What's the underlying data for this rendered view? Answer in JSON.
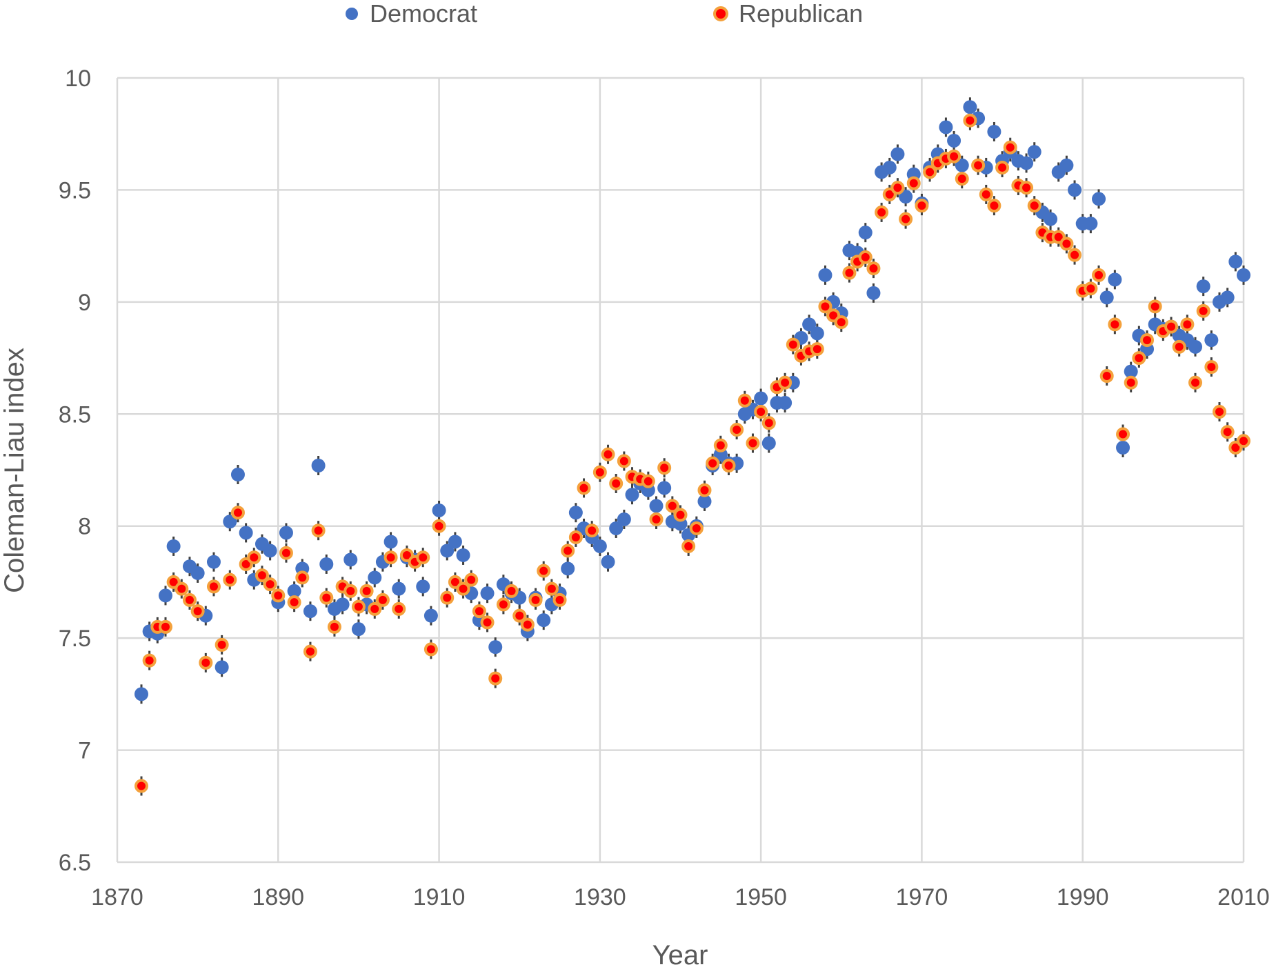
{
  "chart_data": {
    "type": "scatter",
    "xlabel": "Year",
    "ylabel": "Coleman-Liau index",
    "xlim": [
      1870,
      2010
    ],
    "ylim": [
      6.5,
      10
    ],
    "xticks": [
      1870,
      1890,
      1910,
      1930,
      1950,
      1970,
      1990,
      2010
    ],
    "yticks": [
      "6.5",
      "7",
      "7.5",
      "8",
      "8.5",
      "9",
      "9.5",
      "10"
    ],
    "grid": true,
    "legend_position": "top",
    "series": [
      {
        "name": "Democrat",
        "color": "#4472c4",
        "marker": "circle",
        "x": [
          1873,
          1874,
          1875,
          1876,
          1877,
          1879,
          1880,
          1881,
          1882,
          1883,
          1884,
          1885,
          1886,
          1887,
          1888,
          1889,
          1890,
          1891,
          1892,
          1893,
          1894,
          1895,
          1896,
          1897,
          1898,
          1899,
          1900,
          1901,
          1902,
          1903,
          1904,
          1905,
          1906,
          1907,
          1908,
          1909,
          1910,
          1911,
          1912,
          1913,
          1914,
          1915,
          1916,
          1917,
          1918,
          1919,
          1920,
          1921,
          1922,
          1923,
          1924,
          1925,
          1926,
          1927,
          1928,
          1929,
          1930,
          1931,
          1932,
          1933,
          1934,
          1935,
          1936,
          1937,
          1938,
          1939,
          1940,
          1941,
          1942,
          1943,
          1944,
          1945,
          1946,
          1947,
          1948,
          1949,
          1950,
          1951,
          1952,
          1953,
          1954,
          1955,
          1956,
          1957,
          1958,
          1959,
          1960,
          1961,
          1962,
          1963,
          1964,
          1965,
          1966,
          1967,
          1968,
          1969,
          1970,
          1971,
          1972,
          1973,
          1974,
          1975,
          1976,
          1977,
          1978,
          1979,
          1980,
          1981,
          1982,
          1983,
          1984,
          1985,
          1986,
          1987,
          1988,
          1989,
          1990,
          1991,
          1992,
          1993,
          1994,
          1995,
          1996,
          1997,
          1998,
          1999,
          2000,
          2001,
          2002,
          2003,
          2004,
          2005,
          2006,
          2007,
          2008,
          2009,
          2010
        ],
        "y": [
          7.25,
          7.53,
          7.52,
          7.69,
          7.91,
          7.82,
          7.79,
          7.6,
          7.84,
          7.37,
          8.02,
          8.23,
          7.97,
          7.76,
          7.92,
          7.89,
          7.66,
          7.97,
          7.71,
          7.81,
          7.62,
          8.27,
          7.83,
          7.63,
          7.65,
          7.85,
          7.54,
          7.65,
          7.77,
          7.84,
          7.93,
          7.72,
          7.86,
          7.85,
          7.73,
          7.6,
          8.07,
          7.89,
          7.93,
          7.87,
          7.7,
          7.58,
          7.7,
          7.46,
          7.74,
          7.7,
          7.68,
          7.53,
          7.68,
          7.58,
          7.65,
          7.7,
          7.81,
          8.06,
          7.99,
          7.95,
          7.91,
          7.84,
          7.99,
          8.03,
          8.14,
          8.19,
          8.16,
          8.09,
          8.17,
          8.02,
          8.01,
          7.96,
          8.0,
          8.11,
          8.27,
          8.32,
          8.28,
          8.28,
          8.5,
          8.52,
          8.57,
          8.37,
          8.55,
          8.55,
          8.64,
          8.84,
          8.9,
          8.86,
          9.12,
          9.0,
          8.95,
          9.23,
          9.22,
          9.31,
          9.04,
          9.58,
          9.6,
          9.66,
          9.47,
          9.57,
          9.44,
          9.6,
          9.66,
          9.78,
          9.72,
          9.61,
          9.87,
          9.82,
          9.6,
          9.76,
          9.63,
          9.67,
          9.63,
          9.62,
          9.67,
          9.4,
          9.37,
          9.58,
          9.61,
          9.5,
          9.35,
          9.35,
          9.46,
          9.02,
          9.1,
          8.35,
          8.69,
          8.85,
          8.79,
          8.9,
          8.88,
          8.89,
          8.85,
          8.83,
          8.8,
          9.07,
          8.83,
          9.0,
          9.02,
          9.18,
          9.12
        ]
      },
      {
        "name": "Republican",
        "color": "#ff0000",
        "edge_color": "#f4a13c",
        "marker": "circle",
        "x": [
          1873,
          1874,
          1875,
          1876,
          1877,
          1878,
          1879,
          1880,
          1881,
          1882,
          1883,
          1884,
          1885,
          1886,
          1887,
          1888,
          1889,
          1890,
          1891,
          1892,
          1893,
          1894,
          1895,
          1896,
          1897,
          1898,
          1899,
          1900,
          1901,
          1902,
          1903,
          1904,
          1905,
          1906,
          1907,
          1908,
          1909,
          1910,
          1911,
          1912,
          1913,
          1914,
          1915,
          1916,
          1917,
          1918,
          1919,
          1920,
          1921,
          1922,
          1923,
          1924,
          1925,
          1926,
          1927,
          1928,
          1929,
          1930,
          1931,
          1932,
          1933,
          1934,
          1935,
          1936,
          1937,
          1938,
          1939,
          1940,
          1941,
          1942,
          1943,
          1944,
          1945,
          1946,
          1947,
          1948,
          1949,
          1950,
          1951,
          1952,
          1953,
          1954,
          1955,
          1956,
          1957,
          1958,
          1959,
          1960,
          1961,
          1962,
          1963,
          1964,
          1965,
          1966,
          1967,
          1968,
          1969,
          1970,
          1971,
          1972,
          1973,
          1974,
          1975,
          1976,
          1977,
          1978,
          1979,
          1980,
          1981,
          1982,
          1983,
          1984,
          1985,
          1986,
          1987,
          1988,
          1989,
          1990,
          1991,
          1992,
          1993,
          1994,
          1995,
          1996,
          1997,
          1998,
          1999,
          2000,
          2001,
          2002,
          2003,
          2004,
          2005,
          2006,
          2007,
          2008,
          2009,
          2010
        ],
        "y": [
          6.84,
          7.4,
          7.55,
          7.55,
          7.75,
          7.72,
          7.67,
          7.62,
          7.39,
          7.73,
          7.47,
          7.76,
          8.06,
          7.83,
          7.86,
          7.78,
          7.74,
          7.69,
          7.88,
          7.66,
          7.77,
          7.44,
          7.98,
          7.68,
          7.55,
          7.73,
          7.71,
          7.64,
          7.71,
          7.63,
          7.67,
          7.86,
          7.63,
          7.87,
          7.84,
          7.86,
          7.45,
          8.0,
          7.68,
          7.75,
          7.72,
          7.76,
          7.62,
          7.57,
          7.32,
          7.65,
          7.71,
          7.6,
          7.56,
          7.67,
          7.8,
          7.72,
          7.67,
          7.89,
          7.95,
          8.17,
          7.98,
          8.24,
          8.32,
          8.19,
          8.29,
          8.22,
          8.21,
          8.2,
          8.03,
          8.26,
          8.09,
          8.05,
          7.91,
          7.99,
          8.16,
          8.28,
          8.36,
          8.27,
          8.43,
          8.56,
          8.37,
          8.51,
          8.46,
          8.62,
          8.64,
          8.81,
          8.76,
          8.78,
          8.79,
          8.98,
          8.94,
          8.91,
          9.13,
          9.18,
          9.2,
          9.15,
          9.4,
          9.48,
          9.51,
          9.37,
          9.53,
          9.43,
          9.58,
          9.62,
          9.64,
          9.65,
          9.55,
          9.81,
          9.61,
          9.48,
          9.43,
          9.6,
          9.69,
          9.52,
          9.51,
          9.43,
          9.31,
          9.29,
          9.29,
          9.26,
          9.21,
          9.05,
          9.06,
          9.12,
          8.67,
          8.9,
          8.41,
          8.64,
          8.75,
          8.83,
          8.98,
          8.87,
          8.89,
          8.8,
          8.9,
          8.64,
          8.96,
          8.71,
          8.51,
          8.42,
          8.35,
          8.38
        ]
      }
    ]
  }
}
